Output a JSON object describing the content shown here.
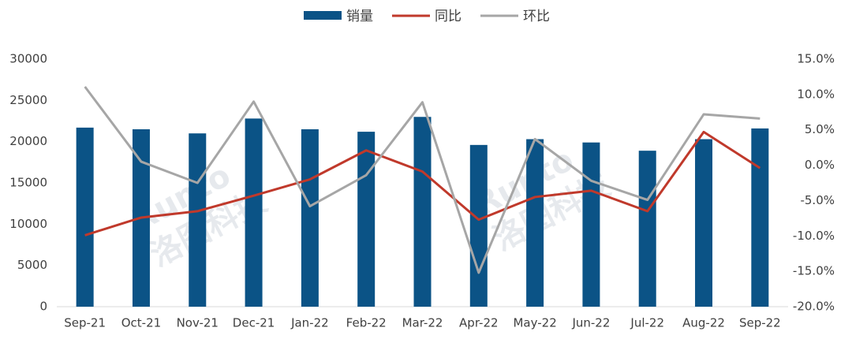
{
  "chart_data": {
    "type": "bar-line",
    "categories": [
      "Sep-21",
      "Oct-21",
      "Nov-21",
      "Dec-21",
      "Jan-22",
      "Feb-22",
      "Mar-22",
      "Apr-22",
      "May-22",
      "Jun-22",
      "Jul-22",
      "Aug-22",
      "Sep-22"
    ],
    "series": [
      {
        "name": "销量",
        "type": "bar",
        "color": "#0b5386",
        "values": [
          21700,
          21500,
          21000,
          22800,
          21500,
          21200,
          23000,
          19600,
          20300,
          19900,
          18900,
          20300,
          21600
        ]
      },
      {
        "name": "同比",
        "type": "line",
        "axis": "y2",
        "color": "#c0392b",
        "values": [
          -9.9,
          -7.4,
          -6.5,
          -4.3,
          -2.0,
          2.1,
          -0.9,
          -7.7,
          -4.5,
          -3.6,
          -6.5,
          4.7,
          -0.4
        ]
      },
      {
        "name": "环比",
        "type": "line",
        "axis": "y2",
        "color": "#a6a6a6",
        "values": [
          11.1,
          0.5,
          -2.5,
          9.0,
          -5.8,
          -1.4,
          8.9,
          -15.2,
          3.7,
          -2.2,
          -4.9,
          7.2,
          6.6
        ]
      }
    ],
    "ylim": [
      0,
      30000
    ],
    "yticks": [
      0,
      5000,
      10000,
      15000,
      20000,
      25000,
      30000
    ],
    "y2lim": [
      -20,
      15
    ],
    "y2ticks": [
      {
        "value": 15,
        "label": "15.0%"
      },
      {
        "value": 10,
        "label": "10.0%"
      },
      {
        "value": 5,
        "label": "5.0%"
      },
      {
        "value": 0,
        "label": "0.0%"
      },
      {
        "value": -5,
        "label": "-5.0%"
      },
      {
        "value": -10,
        "label": "-10.0%"
      },
      {
        "value": -15,
        "label": "-15.0%"
      },
      {
        "value": -20,
        "label": "-20.0%"
      }
    ],
    "legend": "top",
    "watermark": {
      "latin": "Runto",
      "cjk": "洛图科技"
    }
  }
}
